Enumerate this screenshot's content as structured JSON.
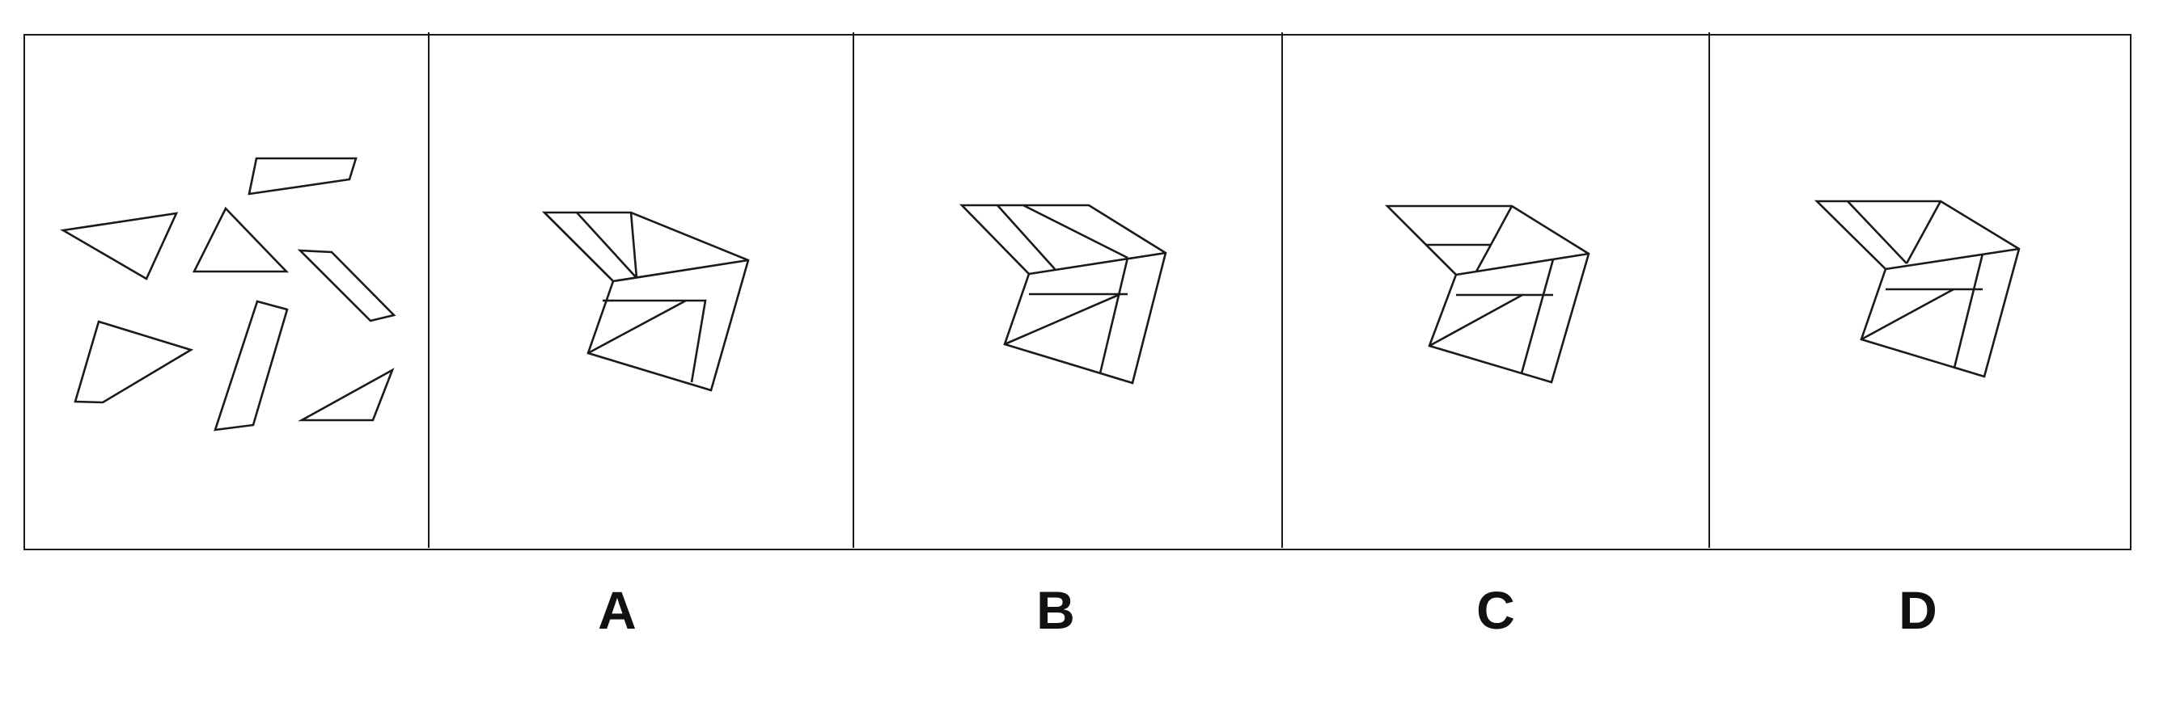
{
  "options": [
    {
      "id": "A",
      "label": "A"
    },
    {
      "id": "B",
      "label": "B"
    },
    {
      "id": "C",
      "label": "C"
    },
    {
      "id": "D",
      "label": "D"
    }
  ]
}
